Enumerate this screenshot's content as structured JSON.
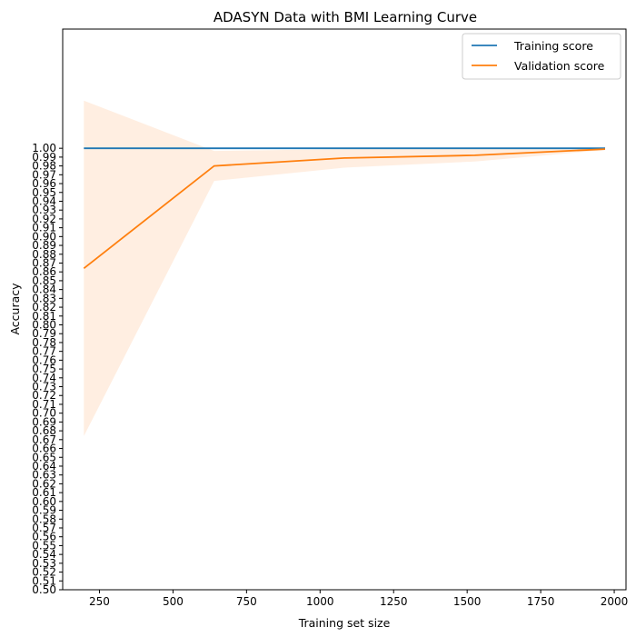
{
  "chart_data": {
    "type": "line",
    "title": "ADASYN Data with BMI Learning Curve",
    "xlabel": "Training set size",
    "ylabel": "Accuracy",
    "xlim": [
      125,
      2040
    ],
    "ylim": [
      0.5,
      1.135
    ],
    "x_ticks": [
      250,
      500,
      750,
      1000,
      1250,
      1500,
      1750,
      2000
    ],
    "y_ticks": [
      0.5,
      0.51,
      0.52,
      0.53,
      0.54,
      0.55,
      0.56,
      0.57,
      0.58,
      0.59,
      0.6,
      0.61,
      0.62,
      0.63,
      0.64,
      0.65,
      0.66,
      0.67,
      0.68,
      0.69,
      0.7,
      0.71,
      0.72,
      0.73,
      0.74,
      0.75,
      0.76,
      0.77,
      0.78,
      0.79,
      0.8,
      0.81,
      0.82,
      0.83,
      0.84,
      0.85,
      0.86,
      0.87,
      0.88,
      0.89,
      0.9,
      0.91,
      0.92,
      0.93,
      0.94,
      0.95,
      0.96,
      0.97,
      0.98,
      0.99,
      1.0
    ],
    "legend_position": "top-right",
    "series": [
      {
        "name": "Training score",
        "color": "#1f77b4",
        "x": [
          197,
          640,
          1083,
          1526,
          1969
        ],
        "y": [
          1.0,
          1.0,
          1.0,
          1.0,
          1.0
        ],
        "band_upper": [
          1.0,
          1.0,
          1.0,
          1.0,
          1.0
        ],
        "band_lower": [
          1.0,
          1.0,
          1.0,
          1.0,
          1.0
        ]
      },
      {
        "name": "Validation score",
        "color": "#ff7f0e",
        "band_color": "#ffeee1",
        "x": [
          197,
          640,
          1083,
          1526,
          1969
        ],
        "y": [
          0.864,
          0.98,
          0.989,
          0.992,
          0.999
        ],
        "band_upper": [
          1.054,
          0.997,
          0.999,
          1.0,
          1.0
        ],
        "band_lower": [
          0.674,
          0.963,
          0.978,
          0.985,
          0.998
        ]
      }
    ]
  }
}
